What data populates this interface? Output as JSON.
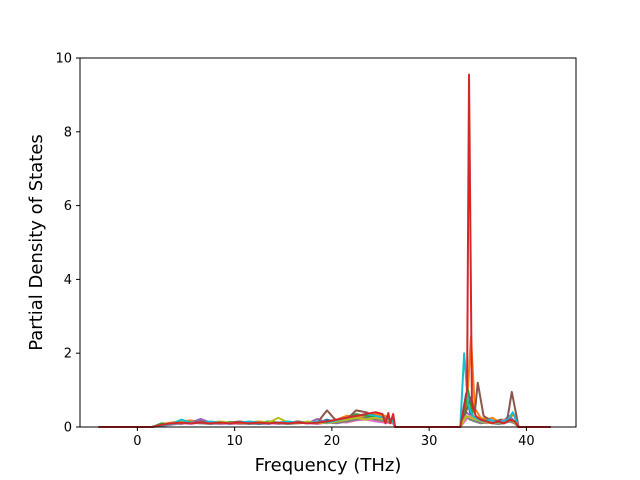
{
  "chart_data": {
    "type": "line",
    "title": "",
    "xlabel": "Frequency (THz)",
    "ylabel": "Partial Density of States",
    "xlim": [
      -5.9,
      45.1
    ],
    "ylim": [
      0,
      10
    ],
    "xticks": [
      0,
      10,
      20,
      30,
      40
    ],
    "yticks": [
      0,
      2,
      4,
      6,
      8,
      10
    ],
    "grid": false,
    "legend": "none",
    "series": [
      {
        "color": "#1f77b4",
        "x": [
          -4,
          1.5,
          2.5,
          3.5,
          4.5,
          5.5,
          6.5,
          7.5,
          8.5,
          9.5,
          10.5,
          11.5,
          12.5,
          13.5,
          14.5,
          15.5,
          16.5,
          17.5,
          18.5,
          19.5,
          20.5,
          21.5,
          22.5,
          23.5,
          24.5,
          25.5,
          26.3,
          26.5,
          33.2,
          33.8,
          34.2,
          34.6,
          35.2,
          35.8,
          36.4,
          37.0,
          37.6,
          38.2,
          38.6,
          39.2,
          42.5
        ],
        "y": [
          0,
          0,
          0.05,
          0.08,
          0.12,
          0.15,
          0.1,
          0.12,
          0.08,
          0.1,
          0.12,
          0.1,
          0.08,
          0.1,
          0.12,
          0.1,
          0.15,
          0.12,
          0.1,
          0.2,
          0.12,
          0.25,
          0.3,
          0.35,
          0.3,
          0.25,
          0.2,
          0,
          0,
          0.9,
          0.4,
          0.2,
          0.15,
          0.25,
          0.15,
          0.1,
          0.15,
          0.3,
          0.2,
          0,
          0
        ]
      },
      {
        "color": "#ff7f0e",
        "x": [
          -4,
          1.5,
          2.5,
          3.5,
          4.5,
          5.5,
          6.5,
          7.5,
          8.5,
          9.5,
          10.5,
          11.5,
          12.5,
          13.5,
          14.5,
          15.5,
          16.5,
          17.5,
          18.5,
          19.5,
          20.5,
          21.5,
          22.5,
          23.5,
          24.5,
          25.5,
          26.3,
          26.5,
          33.2,
          33.9,
          34.3,
          34.7,
          35.3,
          35.9,
          36.5,
          37.1,
          37.7,
          38.3,
          38.7,
          39.2,
          42.5
        ],
        "y": [
          0,
          0,
          0.08,
          0.12,
          0.15,
          0.18,
          0.12,
          0.1,
          0.12,
          0.1,
          0.08,
          0.12,
          0.15,
          0.12,
          0.1,
          0.12,
          0.1,
          0.12,
          0.15,
          0.12,
          0.2,
          0.3,
          0.28,
          0.25,
          0.35,
          0.3,
          0.15,
          0,
          0,
          0.6,
          2.45,
          0.5,
          0.25,
          0.2,
          0.25,
          0.15,
          0.2,
          0.25,
          0.35,
          0,
          0
        ]
      },
      {
        "color": "#2ca02c",
        "x": [
          -4,
          1.5,
          2.5,
          3.5,
          4.5,
          5.5,
          6.5,
          7.5,
          8.5,
          9.5,
          10.5,
          11.5,
          12.5,
          13.5,
          14.5,
          15.5,
          16.5,
          17.5,
          18.5,
          19.5,
          20.5,
          21.5,
          22.5,
          23.5,
          24.5,
          25.5,
          26.3,
          26.5,
          33.2,
          33.6,
          34.0,
          34.5,
          35.0,
          35.6,
          36.2,
          36.8,
          37.4,
          38.0,
          38.6,
          39.2,
          42.5
        ],
        "y": [
          0,
          0,
          0.1,
          0.06,
          0.18,
          0.12,
          0.15,
          0.12,
          0.1,
          0.14,
          0.12,
          0.1,
          0.12,
          0.15,
          0.12,
          0.14,
          0.12,
          0.1,
          0.12,
          0.15,
          0.18,
          0.22,
          0.35,
          0.3,
          0.28,
          0.22,
          0.18,
          0,
          0,
          0.35,
          1.0,
          0.3,
          0.2,
          0.15,
          0.2,
          0.1,
          0.12,
          0.2,
          0.15,
          0,
          0
        ]
      },
      {
        "color": "#9467bd",
        "x": [
          -4,
          1.5,
          2.5,
          3.5,
          4.5,
          5.5,
          6.5,
          7.5,
          8.5,
          9.5,
          10.5,
          11.5,
          12.5,
          13.5,
          14.5,
          15.5,
          16.5,
          17.5,
          18.5,
          19.5,
          20.5,
          21.5,
          22.5,
          23.5,
          24.5,
          25.5,
          26.3,
          26.5,
          33.2,
          33.8,
          34.3,
          34.8,
          35.4,
          36.0,
          36.6,
          37.2,
          37.8,
          38.4,
          38.8,
          39.2,
          42.5
        ],
        "y": [
          0,
          0,
          0.04,
          0.1,
          0.08,
          0.12,
          0.22,
          0.12,
          0.1,
          0.08,
          0.1,
          0.12,
          0.1,
          0.08,
          0.12,
          0.1,
          0.12,
          0.1,
          0.22,
          0.12,
          0.1,
          0.15,
          0.2,
          0.25,
          0.2,
          0.15,
          0.1,
          0,
          0,
          0.4,
          0.3,
          0.25,
          0.2,
          0.15,
          0.1,
          0.15,
          0.2,
          0.25,
          0.15,
          0,
          0
        ]
      },
      {
        "color": "#8c564b",
        "x": [
          -4,
          1.5,
          2.5,
          3.5,
          4.5,
          5.5,
          6.5,
          7.5,
          8.5,
          9.5,
          10.5,
          11.5,
          12.5,
          13.5,
          14.5,
          15.5,
          16.5,
          17.5,
          18.5,
          19.5,
          20.5,
          21.5,
          22.5,
          23.5,
          24.5,
          25.5,
          26.3,
          26.5,
          33.2,
          33.9,
          34.3,
          34.7,
          35.0,
          35.6,
          36.2,
          36.8,
          37.4,
          38.0,
          38.5,
          39.2,
          42.5
        ],
        "y": [
          0,
          0,
          0.05,
          0.1,
          0.12,
          0.1,
          0.15,
          0.12,
          0.1,
          0.12,
          0.15,
          0.12,
          0.1,
          0.12,
          0.1,
          0.12,
          0.15,
          0.1,
          0.12,
          0.45,
          0.15,
          0.2,
          0.45,
          0.4,
          0.3,
          0.2,
          0.15,
          0,
          0,
          0.5,
          0.8,
          0.4,
          1.2,
          0.3,
          0.2,
          0.15,
          0.2,
          0.15,
          0.95,
          0,
          0
        ]
      },
      {
        "color": "#e377c2",
        "x": [
          -4,
          1.5,
          2.5,
          3.5,
          4.5,
          5.5,
          6.5,
          7.5,
          8.5,
          9.5,
          10.5,
          11.5,
          12.5,
          13.5,
          14.5,
          15.5,
          16.5,
          17.5,
          18.5,
          19.5,
          20.5,
          21.5,
          22.5,
          23.5,
          24.5,
          25.5,
          26.3,
          26.5,
          33.2,
          33.8,
          34.2,
          34.7,
          35.3,
          35.9,
          36.5,
          37.1,
          37.7,
          38.3,
          38.8,
          39.2,
          42.5
        ],
        "y": [
          0,
          0,
          0.03,
          0.06,
          0.1,
          0.08,
          0.12,
          0.1,
          0.08,
          0.1,
          0.08,
          0.1,
          0.12,
          0.1,
          0.08,
          0.1,
          0.12,
          0.1,
          0.08,
          0.12,
          0.15,
          0.12,
          0.18,
          0.2,
          0.15,
          0.12,
          0.1,
          0,
          0,
          0.2,
          0.3,
          0.2,
          0.15,
          0.1,
          0.15,
          0.1,
          0.2,
          0.15,
          0.1,
          0,
          0
        ]
      },
      {
        "color": "#7f7f7f",
        "x": [
          -4,
          1.5,
          2.5,
          3.5,
          4.5,
          5.5,
          6.5,
          7.5,
          8.5,
          9.5,
          10.5,
          11.5,
          12.5,
          13.5,
          14.5,
          15.5,
          16.5,
          17.5,
          18.5,
          19.5,
          20.5,
          21.5,
          22.5,
          23.5,
          24.5,
          25.5,
          26.3,
          26.5,
          33.2,
          33.8,
          34.2,
          34.7,
          35.3,
          35.9,
          36.5,
          37.1,
          37.7,
          38.3,
          38.8,
          39.2,
          42.5
        ],
        "y": [
          0,
          0,
          0.04,
          0.08,
          0.1,
          0.12,
          0.1,
          0.08,
          0.1,
          0.12,
          0.1,
          0.08,
          0.1,
          0.12,
          0.1,
          0.08,
          0.1,
          0.12,
          0.1,
          0.15,
          0.12,
          0.15,
          0.2,
          0.25,
          0.2,
          0.15,
          0.12,
          0,
          0,
          0.3,
          0.2,
          0.15,
          0.1,
          0.12,
          0.1,
          0.08,
          0.1,
          0.15,
          0.1,
          0,
          0
        ]
      },
      {
        "color": "#bcbd22",
        "x": [
          -4,
          1.5,
          2.5,
          3.5,
          4.5,
          5.5,
          6.5,
          7.5,
          8.5,
          9.5,
          10.5,
          11.5,
          12.5,
          13.5,
          14.5,
          15.5,
          16.5,
          17.5,
          18.5,
          19.5,
          20.5,
          21.5,
          22.5,
          23.5,
          24.5,
          25.5,
          26.3,
          26.5,
          33.2,
          33.8,
          34.3,
          34.8,
          35.4,
          36.0,
          36.6,
          37.2,
          37.8,
          38.4,
          38.8,
          39.2,
          42.5
        ],
        "y": [
          0,
          0,
          0.06,
          0.1,
          0.15,
          0.12,
          0.1,
          0.12,
          0.15,
          0.12,
          0.1,
          0.12,
          0.15,
          0.12,
          0.25,
          0.12,
          0.1,
          0.15,
          0.12,
          0.1,
          0.15,
          0.2,
          0.25,
          0.2,
          0.25,
          0.2,
          0.15,
          0,
          0,
          0.3,
          0.25,
          0.2,
          0.15,
          0.12,
          0.1,
          0.12,
          0.15,
          0.2,
          0.12,
          0,
          0
        ]
      },
      {
        "color": "#17becf",
        "x": [
          -4,
          1.5,
          2.5,
          3.5,
          4.5,
          5.5,
          6.5,
          7.5,
          8.5,
          9.5,
          10.5,
          11.5,
          12.5,
          13.5,
          14.5,
          15.5,
          16.5,
          17.5,
          18.5,
          19.5,
          20.5,
          21.5,
          22.5,
          23.5,
          24.5,
          25.5,
          26.3,
          26.5,
          33.2,
          33.6,
          34.0,
          34.5,
          35.1,
          35.7,
          36.3,
          36.9,
          37.5,
          38.1,
          38.6,
          39.2,
          42.5
        ],
        "y": [
          0,
          0,
          0.05,
          0.08,
          0.2,
          0.12,
          0.1,
          0.15,
          0.12,
          0.1,
          0.12,
          0.15,
          0.12,
          0.1,
          0.12,
          0.15,
          0.12,
          0.1,
          0.15,
          0.12,
          0.18,
          0.25,
          0.3,
          0.35,
          0.3,
          0.25,
          0.15,
          0,
          0,
          2.0,
          0.6,
          0.3,
          0.2,
          0.15,
          0.2,
          0.12,
          0.15,
          0.2,
          0.4,
          0,
          0
        ]
      },
      {
        "color": "#d62728",
        "x": [
          -4,
          1.5,
          2.5,
          3.5,
          4.5,
          5.5,
          6.5,
          7.5,
          8.5,
          9.5,
          10.5,
          11.5,
          12.5,
          13.5,
          14.5,
          15.5,
          16.5,
          17.5,
          18.5,
          19.5,
          20.5,
          21.5,
          22.5,
          23.5,
          24.5,
          25.2,
          25.5,
          25.8,
          26.0,
          26.3,
          26.5,
          33.2,
          33.9,
          34.1,
          34.4,
          34.8,
          35.3,
          35.9,
          36.5,
          37.1,
          37.7,
          38.3,
          38.8,
          39.2,
          42.5
        ],
        "y": [
          0,
          0,
          0.06,
          0.1,
          0.12,
          0.1,
          0.12,
          0.1,
          0.12,
          0.1,
          0.12,
          0.1,
          0.12,
          0.1,
          0.12,
          0.1,
          0.12,
          0.1,
          0.12,
          0.15,
          0.2,
          0.25,
          0.3,
          0.35,
          0.4,
          0.35,
          0.1,
          0.38,
          0.1,
          0.35,
          0,
          0,
          1.0,
          9.55,
          0.6,
          0.3,
          0.2,
          0.15,
          0.1,
          0.15,
          0.1,
          0.2,
          0.15,
          0,
          0
        ]
      }
    ]
  }
}
